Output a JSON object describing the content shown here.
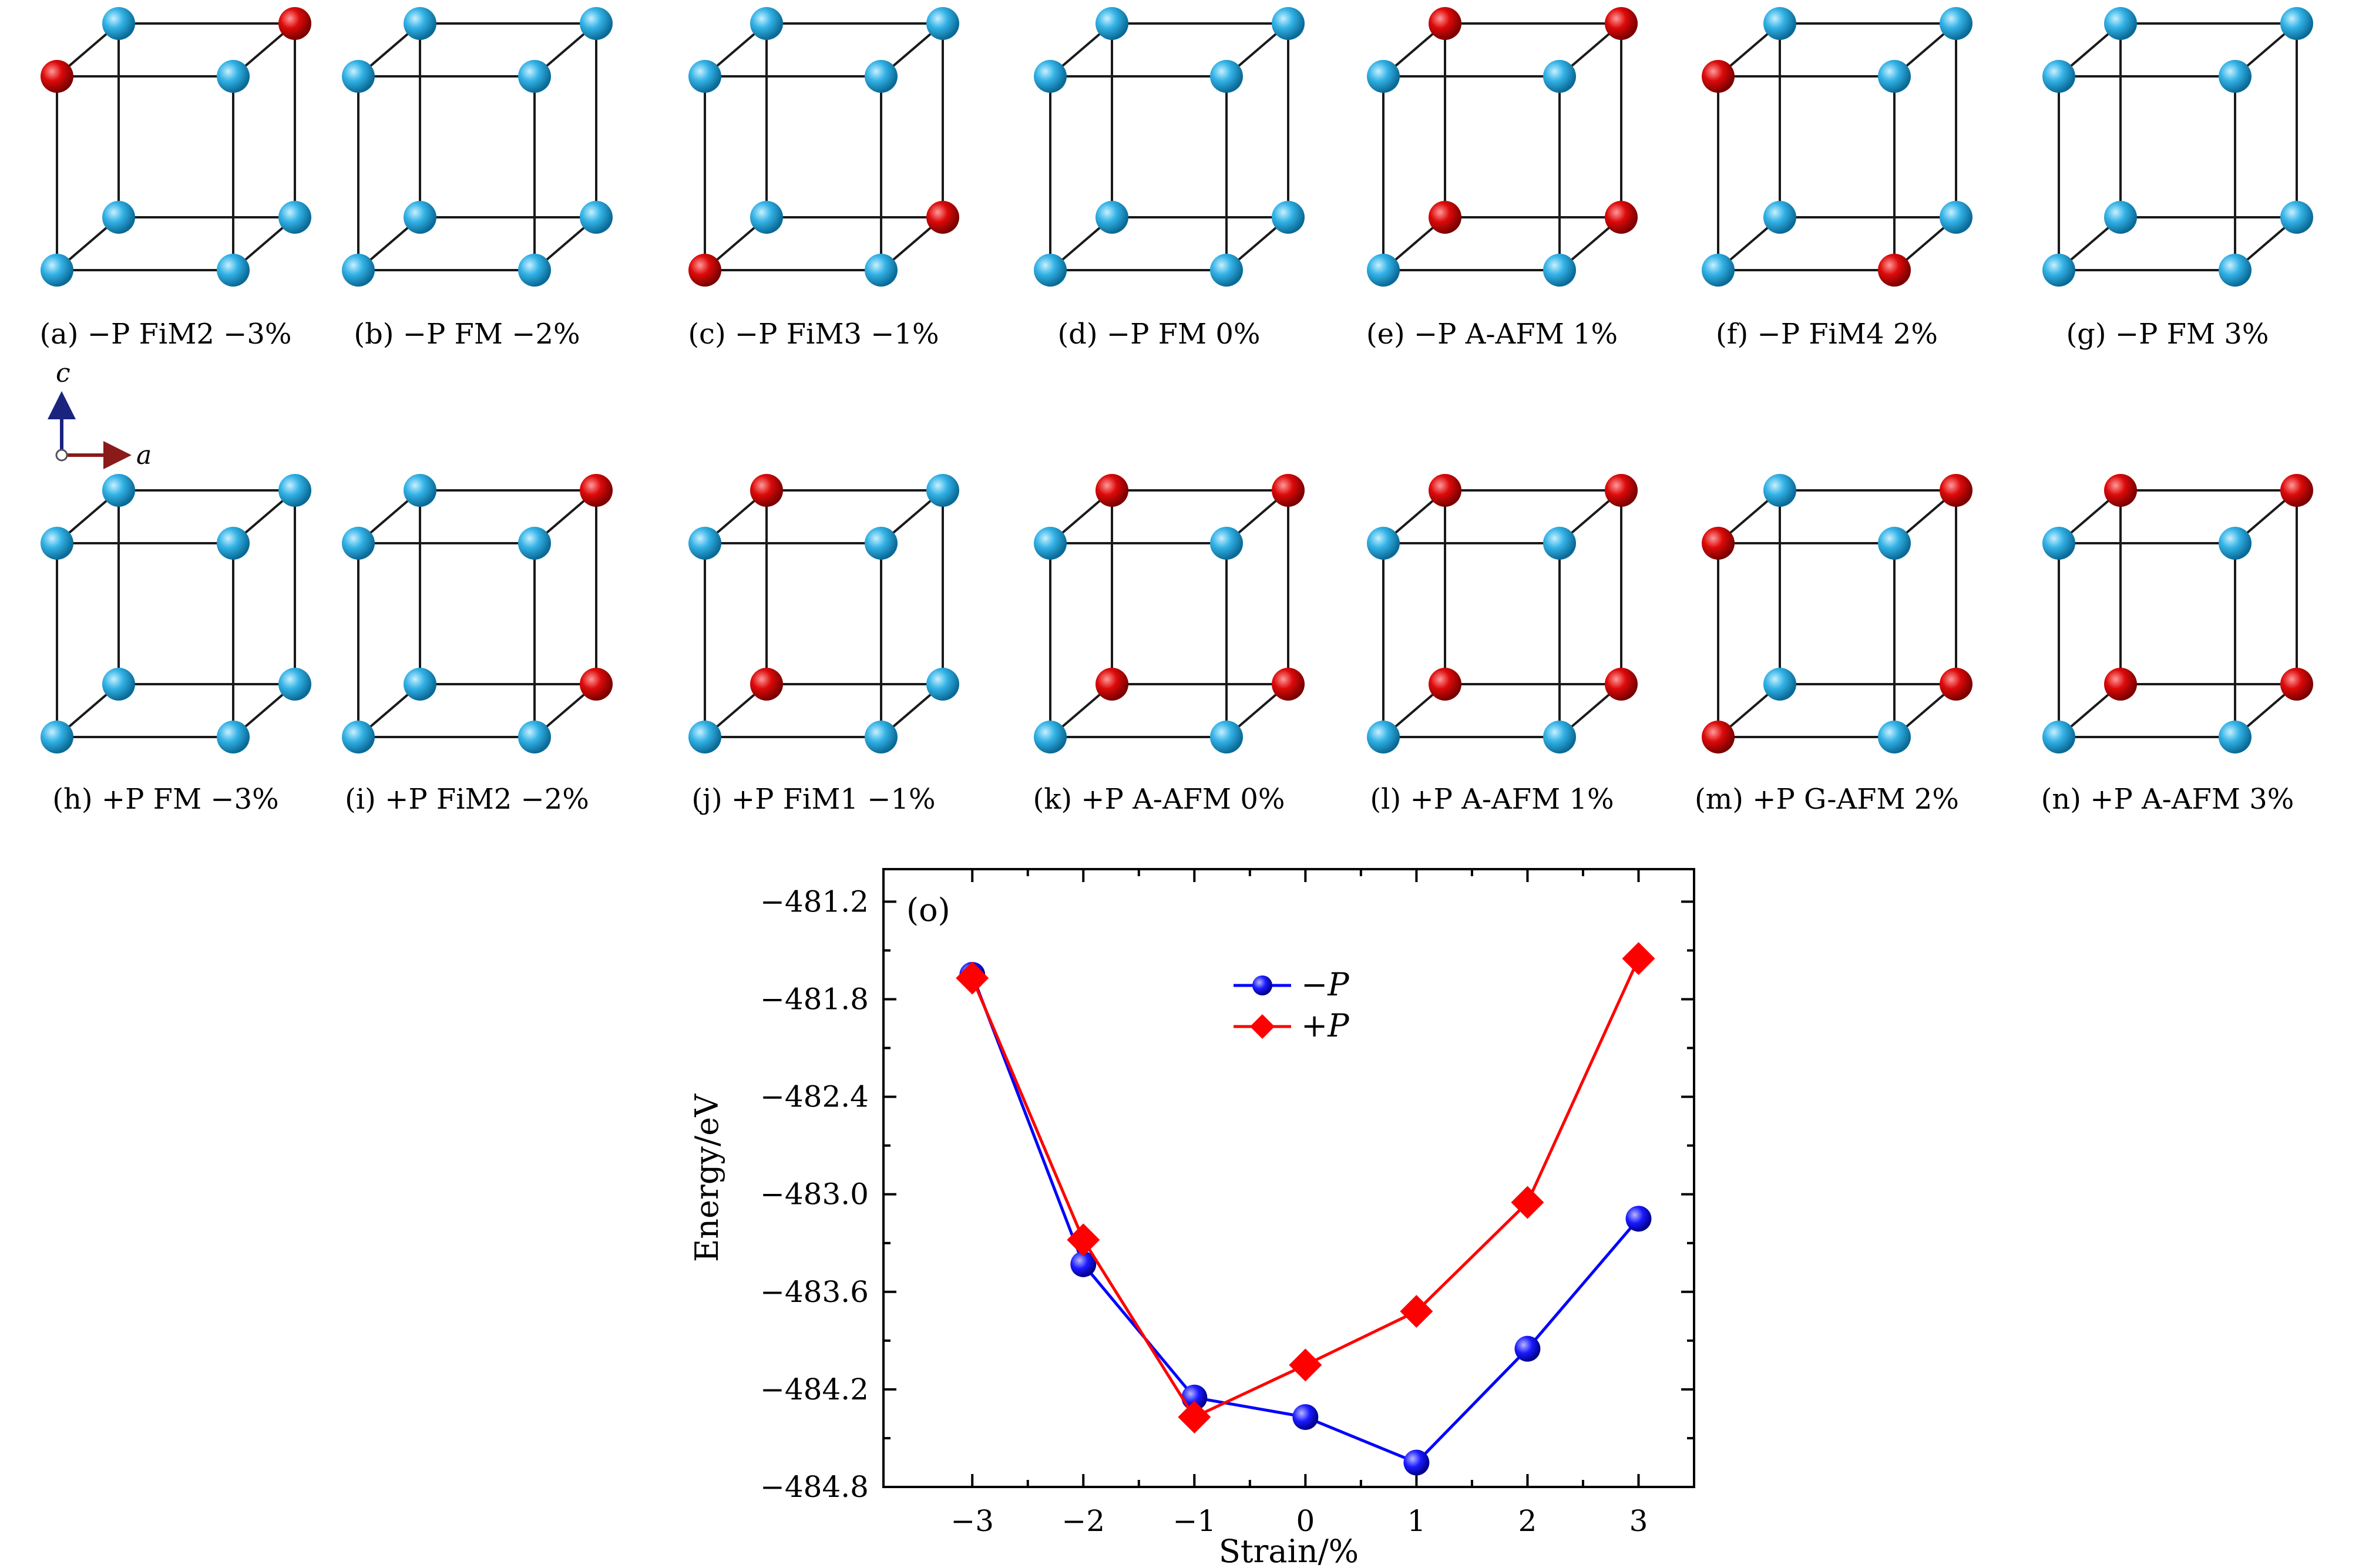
{
  "axes_indicator": {
    "vertical": "c",
    "horizontal": "a"
  },
  "panels": [
    {
      "id": "a",
      "caption": "(a) −P FiM2 −3%",
      "red_atoms": [
        2,
        6
      ]
    },
    {
      "id": "b",
      "caption": "(b) −P FM −2%",
      "red_atoms": []
    },
    {
      "id": "c",
      "caption": "(c) −P FiM3 −1%",
      "red_atoms": [
        0,
        5
      ]
    },
    {
      "id": "d",
      "caption": "(d) −P FM 0%",
      "red_atoms": []
    },
    {
      "id": "e",
      "caption": "(e) −P A-AFM 1%",
      "red_atoms": [
        4,
        5,
        6,
        7
      ]
    },
    {
      "id": "f",
      "caption": "(f) −P FiM4 2%",
      "red_atoms": [
        1,
        2
      ]
    },
    {
      "id": "g",
      "caption": "(g) −P FM 3%",
      "red_atoms": []
    },
    {
      "id": "h",
      "caption": "(h) +P FM −3%",
      "red_atoms": []
    },
    {
      "id": "i",
      "caption": "(i) +P FiM2 −2%",
      "red_atoms": [
        6,
        5
      ]
    },
    {
      "id": "j",
      "caption": "(j) +P FiM1 −1%",
      "red_atoms": [
        4,
        7
      ]
    },
    {
      "id": "k",
      "caption": "(k) +P A-AFM 0%",
      "red_atoms": [
        4,
        5,
        6,
        7
      ]
    },
    {
      "id": "l",
      "caption": "(l) +P A-AFM 1%",
      "red_atoms": [
        4,
        5,
        6,
        7
      ]
    },
    {
      "id": "m",
      "caption": "(m) +P G-AFM 2%",
      "red_atoms": [
        0,
        2,
        5,
        6
      ]
    },
    {
      "id": "n",
      "caption": "(n) +P A-AFM 3%",
      "red_atoms": [
        4,
        5,
        6,
        7
      ]
    }
  ],
  "colors": {
    "blue_atom": "#29a8e0",
    "red_atom": "#d90000",
    "series_minus": "#0000ff",
    "series_plus": "#ff0000"
  },
  "chart_data": {
    "type": "line",
    "panel_label": "(o)",
    "xlabel": "Strain/%",
    "ylabel": "Energy/eV",
    "xlim": [
      -3.8,
      3.5
    ],
    "ylim": [
      -484.8,
      -481.0
    ],
    "xticks": [
      -3,
      -2,
      -1,
      0,
      1,
      2,
      3
    ],
    "xtick_labels": [
      "−3",
      "−2",
      "−1",
      "0",
      "1",
      "2",
      "3"
    ],
    "yticks": [
      -484.8,
      -484.2,
      -483.6,
      -483.0,
      -482.4,
      -481.8,
      -481.2
    ],
    "ytick_labels": [
      "−484.8",
      "−484.2",
      "−483.6",
      "−483.0",
      "−482.4",
      "−481.8",
      "−481.2"
    ],
    "x": [
      -3,
      -2,
      -1,
      0,
      1,
      2,
      3
    ],
    "series": [
      {
        "name": "−P",
        "marker": "circle",
        "color": "#0000ff",
        "values": [
          -481.65,
          -483.43,
          -484.25,
          -484.37,
          -484.65,
          -483.95,
          -483.15
        ]
      },
      {
        "name": "+P",
        "marker": "diamond",
        "color": "#ff0000",
        "values": [
          -481.67,
          -483.28,
          -484.37,
          -484.05,
          -483.72,
          -483.05,
          -481.55
        ]
      }
    ],
    "legend_position": "upper center"
  }
}
